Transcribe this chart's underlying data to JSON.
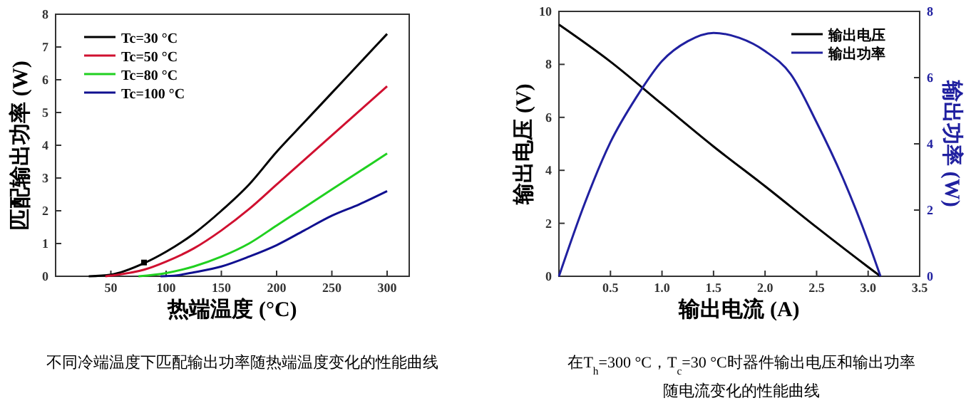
{
  "chart_data": [
    {
      "type": "line",
      "xlabel": "热端温度 (°C)",
      "ylabel": "匹配输出功率 (W)",
      "xlim": [
        0,
        320
      ],
      "ylim": [
        0,
        8
      ],
      "xticks": [
        50,
        100,
        150,
        200,
        250,
        300
      ],
      "yticks": [
        0,
        1,
        2,
        3,
        4,
        5,
        6,
        7,
        8
      ],
      "grid": false,
      "legend": "top left",
      "marker": "none",
      "line_style": "solid",
      "annotations": [
        "不同冷端温度下匹配输出功率随热端温度变化的性能曲线"
      ],
      "series": [
        {
          "name": "Tc=30 °C",
          "color": "#000000",
          "x": [
            30,
            50,
            80,
            100,
            125,
            150,
            175,
            200,
            225,
            250,
            275,
            300
          ],
          "values": [
            0,
            0.05,
            0.4,
            0.75,
            1.3,
            2.0,
            2.8,
            3.8,
            4.7,
            5.6,
            6.5,
            7.4
          ]
        },
        {
          "name": "Tc=50 °C",
          "color": "#d01030",
          "x": [
            45,
            50,
            80,
            100,
            125,
            150,
            175,
            200,
            225,
            250,
            275,
            300
          ],
          "values": [
            0,
            0.02,
            0.2,
            0.45,
            0.85,
            1.4,
            2.05,
            2.8,
            3.55,
            4.3,
            5.05,
            5.8
          ]
        },
        {
          "name": "Tc=80 °C",
          "color": "#20d020",
          "x": [
            75,
            100,
            125,
            150,
            175,
            200,
            225,
            250,
            275,
            300
          ],
          "values": [
            0,
            0.1,
            0.3,
            0.6,
            1.0,
            1.55,
            2.1,
            2.65,
            3.2,
            3.75
          ]
        },
        {
          "name": "Tc=100 °C",
          "color": "#101090",
          "x": [
            95,
            110,
            125,
            150,
            175,
            200,
            225,
            250,
            275,
            300
          ],
          "values": [
            0,
            0.03,
            0.12,
            0.3,
            0.6,
            0.95,
            1.4,
            1.85,
            2.2,
            2.6
          ]
        },
        {
          "type": "scatter",
          "marker": "square",
          "color": "#000000",
          "x": [
            80
          ],
          "values": [
            0.42
          ]
        }
      ]
    },
    {
      "type": "line",
      "xlabel": "输出电流 (A)",
      "ylabel": "输出电压 (V)",
      "y2label": "输出功率 (W)",
      "xlim": [
        0,
        3.5
      ],
      "ylim": [
        0,
        10
      ],
      "y2lim": [
        0,
        8
      ],
      "xticks": [
        0.5,
        {
          "value": 1,
          "label": "1.0"
        },
        1.5,
        {
          "value": 2,
          "label": "2.0"
        },
        2.5,
        {
          "value": 3,
          "label": "3.0"
        },
        3.5
      ],
      "yticks": [
        0,
        2,
        4,
        6,
        8,
        10
      ],
      "y2ticks": [
        0,
        2,
        4,
        6,
        8
      ],
      "grid": false,
      "legend": "top right",
      "marker": "none",
      "line_style": "solid",
      "annotations": [
        "在T$_{h}$=300 °C，T$_{c}$=30 °C时器件输出电压和输出功率",
        "随电流变化的性能曲线"
      ],
      "series": [
        {
          "name": "输出电压",
          "color": "#000000",
          "x": [
            0,
            0.5,
            1.0,
            1.5,
            2.0,
            2.5,
            3.0,
            3.12
          ],
          "values": [
            9.5,
            8.1,
            6.5,
            4.9,
            3.4,
            1.85,
            0.35,
            0
          ]
        },
        {
          "name": "输出功率",
          "color": "#2020a0",
          "axis": "y2",
          "x": [
            0,
            0.25,
            0.5,
            0.75,
            1.0,
            1.25,
            1.5,
            1.75,
            2.0,
            2.25,
            2.5,
            2.75,
            3.0,
            3.12
          ],
          "values": [
            0,
            2.2,
            4.05,
            5.4,
            6.5,
            7.1,
            7.35,
            7.2,
            6.8,
            6.1,
            4.65,
            3.0,
            1.05,
            0
          ]
        }
      ]
    }
  ]
}
